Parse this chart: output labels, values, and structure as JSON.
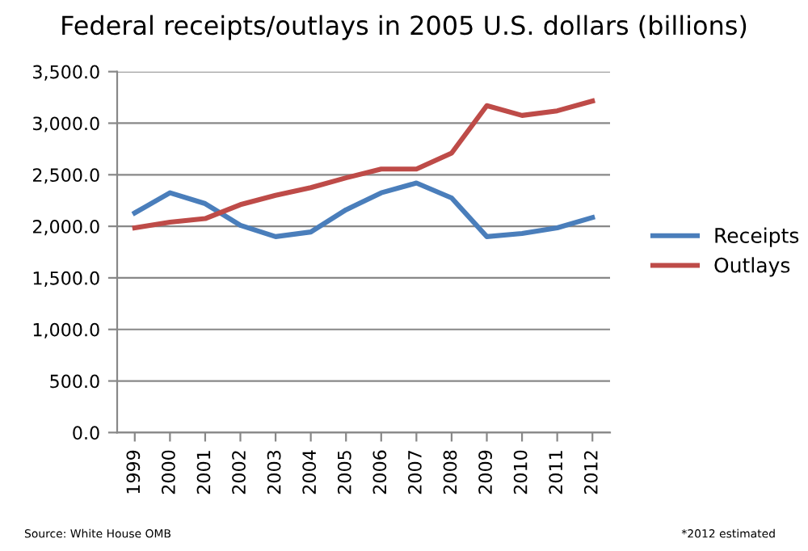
{
  "chart_data": {
    "type": "line",
    "title": "Federal receipts/outlays in 2005 U.S. dollars (billions)",
    "categories": [
      "1999",
      "2000",
      "2001",
      "2002",
      "2003",
      "2004",
      "2005",
      "2006",
      "2007",
      "2008",
      "2009",
      "2010",
      "2011",
      "2012"
    ],
    "series": [
      {
        "name": "Receipts",
        "color": "#4a7ebb",
        "values": [
          2130,
          2325,
          2220,
          2010,
          1900,
          1945,
          2160,
          2325,
          2420,
          2275,
          1900,
          1930,
          1985,
          2085
        ]
      },
      {
        "name": "Outlays",
        "color": "#be4b48",
        "values": [
          1985,
          2040,
          2075,
          2210,
          2300,
          2375,
          2470,
          2555,
          2555,
          2710,
          3170,
          3075,
          3120,
          3215
        ]
      }
    ],
    "ylim": [
      0,
      3500
    ],
    "yticks": [
      {
        "value": 0,
        "label": "0.0"
      },
      {
        "value": 500,
        "label": "500.0"
      },
      {
        "value": 1000,
        "label": "1,000.0"
      },
      {
        "value": 1500,
        "label": "1,500.0"
      },
      {
        "value": 2000,
        "label": "2,000.0"
      },
      {
        "value": 2500,
        "label": "2,500.0"
      },
      {
        "value": 3000,
        "label": "3,000.0"
      },
      {
        "value": 3500,
        "label": "3,500.0"
      }
    ],
    "grid": "y",
    "legend": "right",
    "marker": "none",
    "line_style": "solid",
    "annotations": [
      "Source: White House OMB",
      "*2012 estimated"
    ]
  }
}
